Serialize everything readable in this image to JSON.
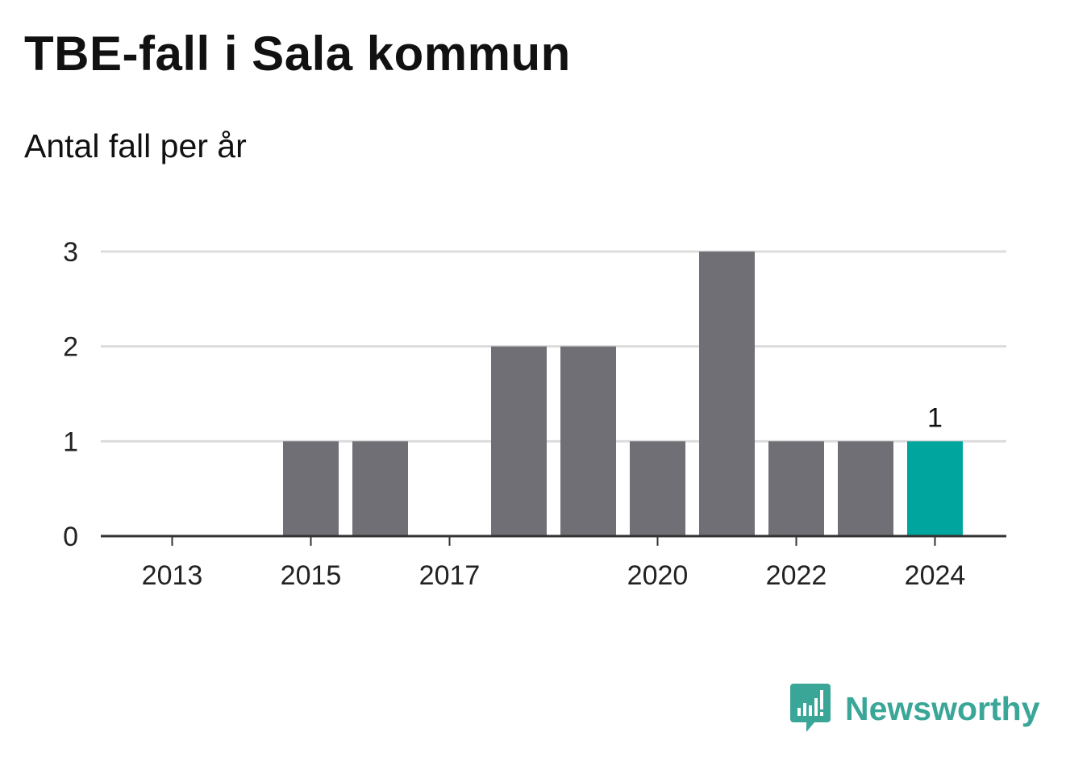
{
  "title": "TBE-fall i Sala kommun",
  "subtitle": "Antal fall per år",
  "chart_data": {
    "type": "bar",
    "categories": [
      "2013",
      "2014",
      "2015",
      "2016",
      "2017",
      "2018",
      "2019",
      "2020",
      "2021",
      "2022",
      "2023",
      "2024"
    ],
    "values": [
      0,
      0,
      1,
      1,
      0,
      2,
      2,
      1,
      3,
      1,
      1,
      1
    ],
    "x_tick_labels": [
      "2013",
      "2015",
      "2017",
      "2020",
      "2022",
      "2024"
    ],
    "y_ticks": [
      0,
      1,
      2,
      3
    ],
    "ylim": [
      0,
      3
    ],
    "grid": true,
    "bar_color": "#706f75",
    "highlight_color": "#00a59d",
    "highlight_category": "2024",
    "data_labels": [
      {
        "category": "2024",
        "text": "1"
      }
    ]
  },
  "branding": {
    "name": "Newsworthy",
    "icon": "newsworthy-logo-icon",
    "color": "#3aa698"
  }
}
